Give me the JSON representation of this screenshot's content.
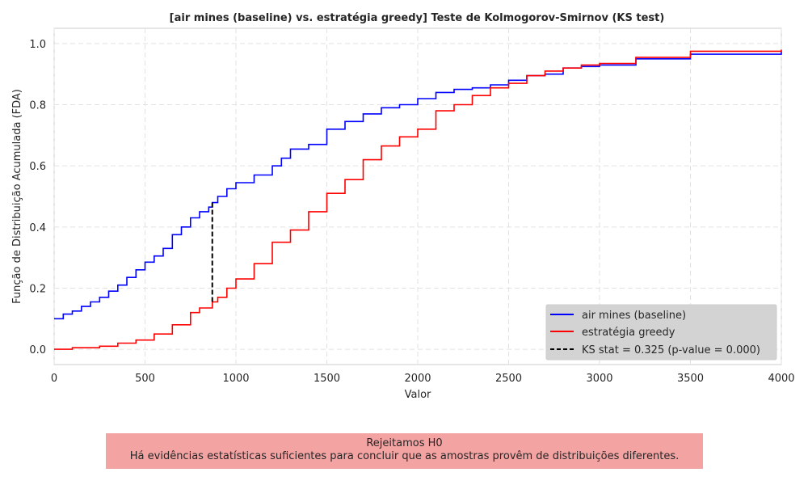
{
  "chart_data": {
    "type": "line",
    "title": "[air mines (baseline) vs. estratégia greedy] Teste de Kolmogorov-Smirnov (KS test)",
    "xlabel": "Valor",
    "ylabel": "Função de Distribuição Acumulada (FDA)",
    "xlim": [
      0,
      4000
    ],
    "ylim": [
      -0.05,
      1.05
    ],
    "xticks": [
      0,
      500,
      1000,
      1500,
      2000,
      2500,
      3000,
      3500,
      4000
    ],
    "yticks": [
      0.0,
      0.2,
      0.4,
      0.6,
      0.8,
      1.0
    ],
    "xtick_labels": [
      "0",
      "500",
      "1000",
      "1500",
      "2000",
      "2500",
      "3000",
      "3500",
      "4000"
    ],
    "ytick_labels": [
      "0.0",
      "0.2",
      "0.4",
      "0.6",
      "0.8",
      "1.0"
    ],
    "grid": true,
    "legend_position": "bottom-right",
    "series": [
      {
        "name": "air mines (baseline)",
        "color": "#0000ff",
        "x": [
          0,
          50,
          100,
          150,
          200,
          250,
          300,
          350,
          400,
          450,
          500,
          550,
          600,
          650,
          700,
          750,
          800,
          850,
          870,
          900,
          950,
          1000,
          1100,
          1200,
          1250,
          1300,
          1400,
          1500,
          1600,
          1700,
          1800,
          1900,
          2000,
          2100,
          2200,
          2300,
          2400,
          2500,
          2600,
          2700,
          2800,
          2900,
          3000,
          3200,
          3500,
          4000
        ],
        "y": [
          0.1,
          0.115,
          0.125,
          0.14,
          0.155,
          0.17,
          0.19,
          0.21,
          0.235,
          0.26,
          0.285,
          0.305,
          0.33,
          0.375,
          0.4,
          0.43,
          0.45,
          0.465,
          0.48,
          0.5,
          0.525,
          0.545,
          0.57,
          0.6,
          0.625,
          0.655,
          0.67,
          0.72,
          0.745,
          0.77,
          0.79,
          0.8,
          0.82,
          0.84,
          0.85,
          0.855,
          0.865,
          0.88,
          0.895,
          0.9,
          0.92,
          0.925,
          0.93,
          0.95,
          0.965,
          0.975
        ]
      },
      {
        "name": "estratégia greedy",
        "color": "#ff0000",
        "x": [
          0,
          100,
          250,
          350,
          450,
          550,
          650,
          750,
          800,
          870,
          900,
          950,
          1000,
          1100,
          1200,
          1300,
          1400,
          1500,
          1600,
          1700,
          1800,
          1900,
          2000,
          2100,
          2200,
          2300,
          2400,
          2500,
          2600,
          2700,
          2800,
          2900,
          3000,
          3200,
          3500,
          4000
        ],
        "y": [
          0.0,
          0.005,
          0.01,
          0.02,
          0.03,
          0.05,
          0.08,
          0.12,
          0.135,
          0.155,
          0.17,
          0.2,
          0.23,
          0.28,
          0.35,
          0.39,
          0.45,
          0.51,
          0.555,
          0.62,
          0.665,
          0.695,
          0.72,
          0.78,
          0.8,
          0.83,
          0.855,
          0.87,
          0.895,
          0.91,
          0.92,
          0.93,
          0.935,
          0.955,
          0.975,
          0.98
        ]
      }
    ],
    "ks": {
      "label": "KS stat = 0.325 (p-value = 0.000)",
      "x": 870,
      "y_low": 0.155,
      "y_high": 0.48,
      "color": "#000000"
    }
  },
  "conclusion": {
    "line1": "Rejeitamos H0",
    "line2": "Há evidências estatísticas suficientes para concluir que as amostras provêm de distribuições diferentes.",
    "background": "#f4a3a3"
  }
}
